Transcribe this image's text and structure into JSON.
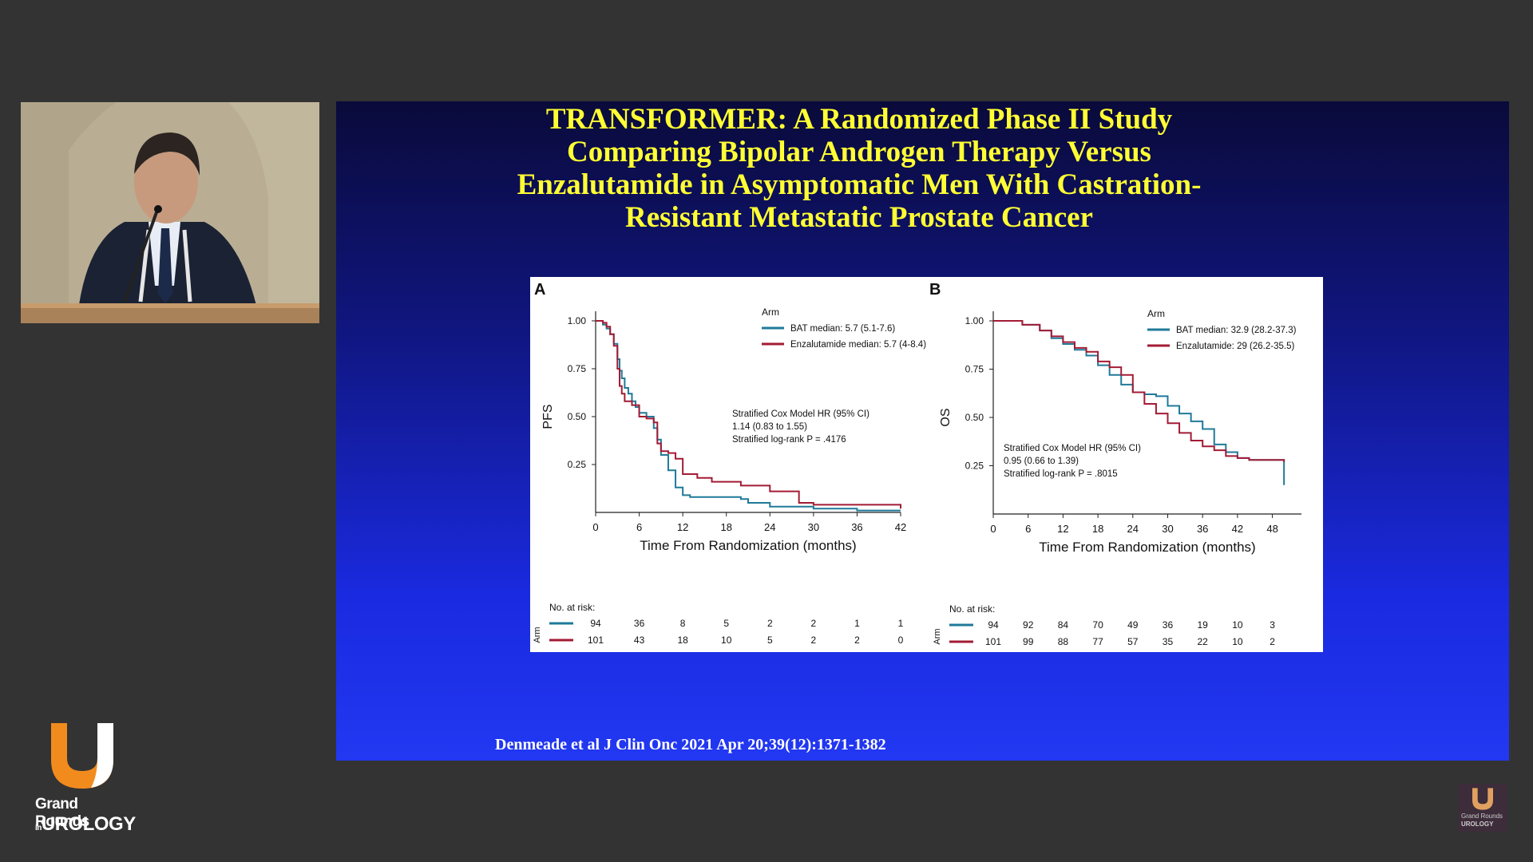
{
  "slide": {
    "title_lines": [
      "TRANSFORMER: A Randomized Phase II Study",
      "Comparing Bipolar Androgen Therapy Versus",
      "Enzalutamide in Asymptomatic Men With Castration-",
      "Resistant Metastatic Prostate Cancer"
    ],
    "citation": "Denmeade et al J Clin Onc 2021 Apr 20;39(12):1371-1382"
  },
  "branding": {
    "logo_line1": "Grand Rounds",
    "logo_line2_prefix": "in",
    "logo_line2": "UROLOGY",
    "small_logo_line1": "Grand Rounds",
    "small_logo_line2": "UROLOGY",
    "colors": {
      "orange": "#f28b1e",
      "white": "#ffffff"
    }
  },
  "colors": {
    "bat": "#1f7a99",
    "enz": "#a31b35",
    "title": "#ffff33"
  },
  "chart_data": [
    {
      "panel": "A",
      "type": "line",
      "step": true,
      "ylabel": "PFS",
      "xlabel": "Time From Randomization (months)",
      "xticks": [
        0,
        6,
        12,
        18,
        24,
        30,
        36,
        42
      ],
      "yticks": [
        0.25,
        0.5,
        0.75,
        1.0
      ],
      "ytick_labels": [
        "0.25",
        "0.50",
        "0.75",
        "1.00"
      ],
      "xlim": [
        0,
        42
      ],
      "ylim": [
        0,
        1
      ],
      "legend_title": "Arm",
      "legend_position": "top-right",
      "series": [
        {
          "name": "BAT median: 5.7 (5.1-7.6)",
          "color": "#1f7a99",
          "x": [
            0,
            1,
            1.5,
            2,
            2.5,
            3,
            3.3,
            3.6,
            4,
            4.5,
            5,
            5.5,
            6,
            7,
            8,
            8.5,
            9,
            10,
            11,
            12,
            13,
            16,
            20,
            21,
            24,
            30,
            36,
            42
          ],
          "y": [
            1,
            0.98,
            0.96,
            0.93,
            0.88,
            0.8,
            0.74,
            0.7,
            0.65,
            0.62,
            0.58,
            0.55,
            0.52,
            0.5,
            0.44,
            0.38,
            0.3,
            0.22,
            0.13,
            0.09,
            0.08,
            0.08,
            0.07,
            0.05,
            0.03,
            0.02,
            0.01,
            0.01
          ]
        },
        {
          "name": "Enzalutamide median: 5.7 (4-8.4)",
          "color": "#a31b35",
          "x": [
            0,
            1,
            1.5,
            2,
            2.5,
            3,
            3.3,
            3.6,
            4,
            5,
            6,
            7,
            8,
            8.5,
            9,
            10,
            11,
            12,
            14,
            16,
            20,
            24,
            28,
            30,
            36,
            42
          ],
          "y": [
            1,
            0.99,
            0.97,
            0.93,
            0.87,
            0.75,
            0.66,
            0.62,
            0.58,
            0.56,
            0.5,
            0.49,
            0.47,
            0.36,
            0.32,
            0.31,
            0.28,
            0.2,
            0.18,
            0.16,
            0.14,
            0.11,
            0.05,
            0.04,
            0.04,
            0.02
          ]
        }
      ],
      "annotation": [
        "Stratified Cox Model HR (95% CI)",
        "1.14 (0.83 to 1.55)",
        "Stratified log-rank P = .4176"
      ],
      "risk_table": {
        "header": "No. at risk:",
        "arm_label": "Arm",
        "rows": [
          {
            "color": "#1f7a99",
            "values": [
              "94",
              "36",
              "8",
              "5",
              "2",
              "2",
              "1",
              "1"
            ]
          },
          {
            "color": "#a31b35",
            "values": [
              "101",
              "43",
              "18",
              "10",
              "5",
              "2",
              "2",
              "0"
            ]
          }
        ]
      }
    },
    {
      "panel": "B",
      "type": "line",
      "step": true,
      "ylabel": "OS",
      "xlabel": "Time From Randomization (months)",
      "xticks": [
        0,
        6,
        12,
        18,
        24,
        30,
        36,
        42,
        48
      ],
      "yticks": [
        0.25,
        0.5,
        0.75,
        1.0
      ],
      "ytick_labels": [
        "0.25",
        "0.50",
        "0.75",
        "1.00"
      ],
      "xlim": [
        0,
        53
      ],
      "ylim": [
        0,
        1
      ],
      "legend_title": "Arm",
      "legend_position": "top-right",
      "series": [
        {
          "name": "BAT median: 32.9 (28.2-37.3)",
          "color": "#1f7a99",
          "x": [
            0,
            3,
            5,
            8,
            10,
            12,
            14,
            16,
            18,
            20,
            22,
            24,
            26,
            28,
            30,
            32,
            34,
            36,
            38,
            40,
            42,
            44,
            46,
            48,
            50
          ],
          "y": [
            1,
            1,
            0.98,
            0.95,
            0.91,
            0.88,
            0.85,
            0.82,
            0.77,
            0.72,
            0.67,
            0.63,
            0.62,
            0.61,
            0.56,
            0.52,
            0.48,
            0.44,
            0.36,
            0.32,
            0.29,
            0.28,
            0.28,
            0.28,
            0.15
          ]
        },
        {
          "name": "Enzalutamide: 29 (26.2-35.5)",
          "color": "#a31b35",
          "x": [
            0,
            3,
            5,
            8,
            10,
            12,
            14,
            16,
            18,
            20,
            22,
            24,
            26,
            28,
            30,
            32,
            34,
            36,
            38,
            40,
            42,
            44,
            46,
            48,
            50
          ],
          "y": [
            1,
            1,
            0.98,
            0.95,
            0.92,
            0.89,
            0.86,
            0.84,
            0.79,
            0.76,
            0.72,
            0.63,
            0.57,
            0.52,
            0.47,
            0.42,
            0.38,
            0.35,
            0.33,
            0.3,
            0.29,
            0.28,
            0.28,
            0.28,
            0.27
          ]
        }
      ],
      "annotation": [
        "Stratified Cox Model HR (95% CI)",
        "0.95 (0.66 to 1.39)",
        "Stratified log-rank P = .8015"
      ],
      "risk_table": {
        "header": "No. at risk:",
        "arm_label": "Arm",
        "rows": [
          {
            "color": "#1f7a99",
            "values": [
              "94",
              "92",
              "84",
              "70",
              "49",
              "36",
              "19",
              "10",
              "3"
            ]
          },
          {
            "color": "#a31b35",
            "values": [
              "101",
              "99",
              "88",
              "77",
              "57",
              "35",
              "22",
              "10",
              "2"
            ]
          }
        ]
      }
    }
  ]
}
